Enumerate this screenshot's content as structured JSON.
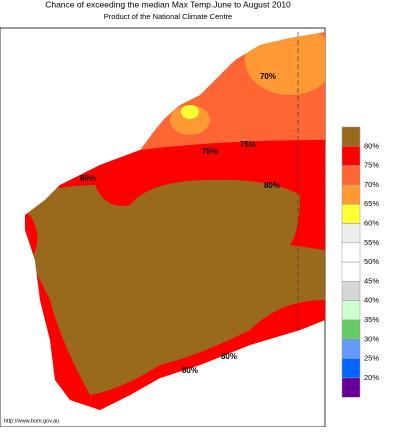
{
  "header": {
    "title": "Chance of exceeding the median Max Temp.June to August 2010",
    "subtitle": "Product of the National Climate Centre"
  },
  "contours": [
    "70%",
    "75%",
    "75%",
    "80%",
    "80%",
    "80%",
    "80%"
  ],
  "legend": {
    "colors": [
      "#9a6a1c",
      "#ff0000",
      "#ff6633",
      "#ff9933",
      "#ffff33",
      "#eeeeee",
      "#ffffff",
      "#ffffff",
      "#d6d6d6",
      "#ccffcc",
      "#66cc66",
      "#6699ff",
      "#0066ff",
      "#660099"
    ],
    "labels": [
      "80%",
      "75%",
      "70%",
      "65%",
      "60%",
      "55%",
      "50%",
      "45%",
      "40%",
      "35%",
      "30%",
      "25%",
      "20%"
    ]
  },
  "footer": "http://www.bom.gov.au"
}
